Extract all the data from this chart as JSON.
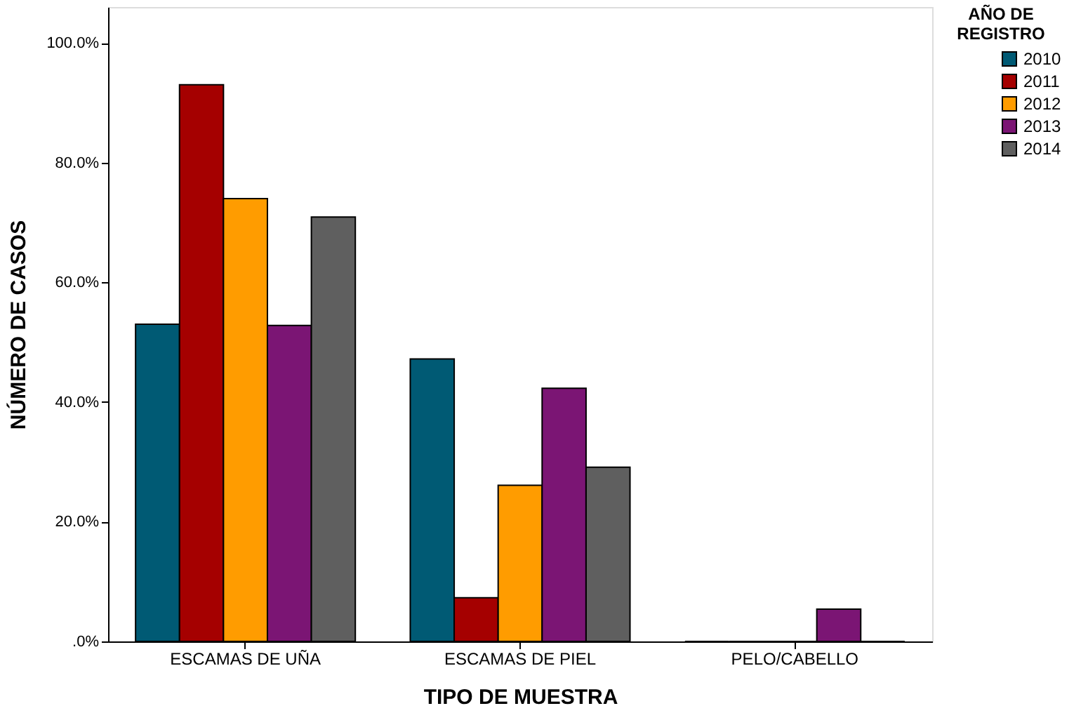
{
  "chart_data": {
    "type": "bar",
    "xlabel": "TIPO DE MUESTRA",
    "ylabel": "NÚMERO DE CASOS",
    "legend_title": "AÑO DE REGISTRO",
    "categories": [
      "ESCAMAS DE UÑA",
      "ESCAMAS DE PIEL",
      "PELO/CABELLO"
    ],
    "series": [
      {
        "name": "2010",
        "color": "#005a74",
        "values": [
          53.0,
          47.2,
          0
        ]
      },
      {
        "name": "2011",
        "color": "#a50000",
        "values": [
          93.0,
          7.3,
          0
        ]
      },
      {
        "name": "2012",
        "color": "#ff9c00",
        "values": [
          74.0,
          26.1,
          0
        ]
      },
      {
        "name": "2013",
        "color": "#7b1574",
        "values": [
          52.8,
          42.3,
          5.4
        ]
      },
      {
        "name": "2014",
        "color": "#5f5f5f",
        "values": [
          70.9,
          29.1,
          0
        ]
      }
    ],
    "ylim": [
      0,
      106
    ],
    "yticks": [
      {
        "value": 0,
        "label": ".0%"
      },
      {
        "value": 20,
        "label": "20.0%"
      },
      {
        "value": 40,
        "label": "40.0%"
      },
      {
        "value": 60,
        "label": "60.0%"
      },
      {
        "value": 80,
        "label": "80.0%"
      },
      {
        "value": 100,
        "label": "100.0%"
      }
    ],
    "grid": false,
    "legend": "right"
  }
}
